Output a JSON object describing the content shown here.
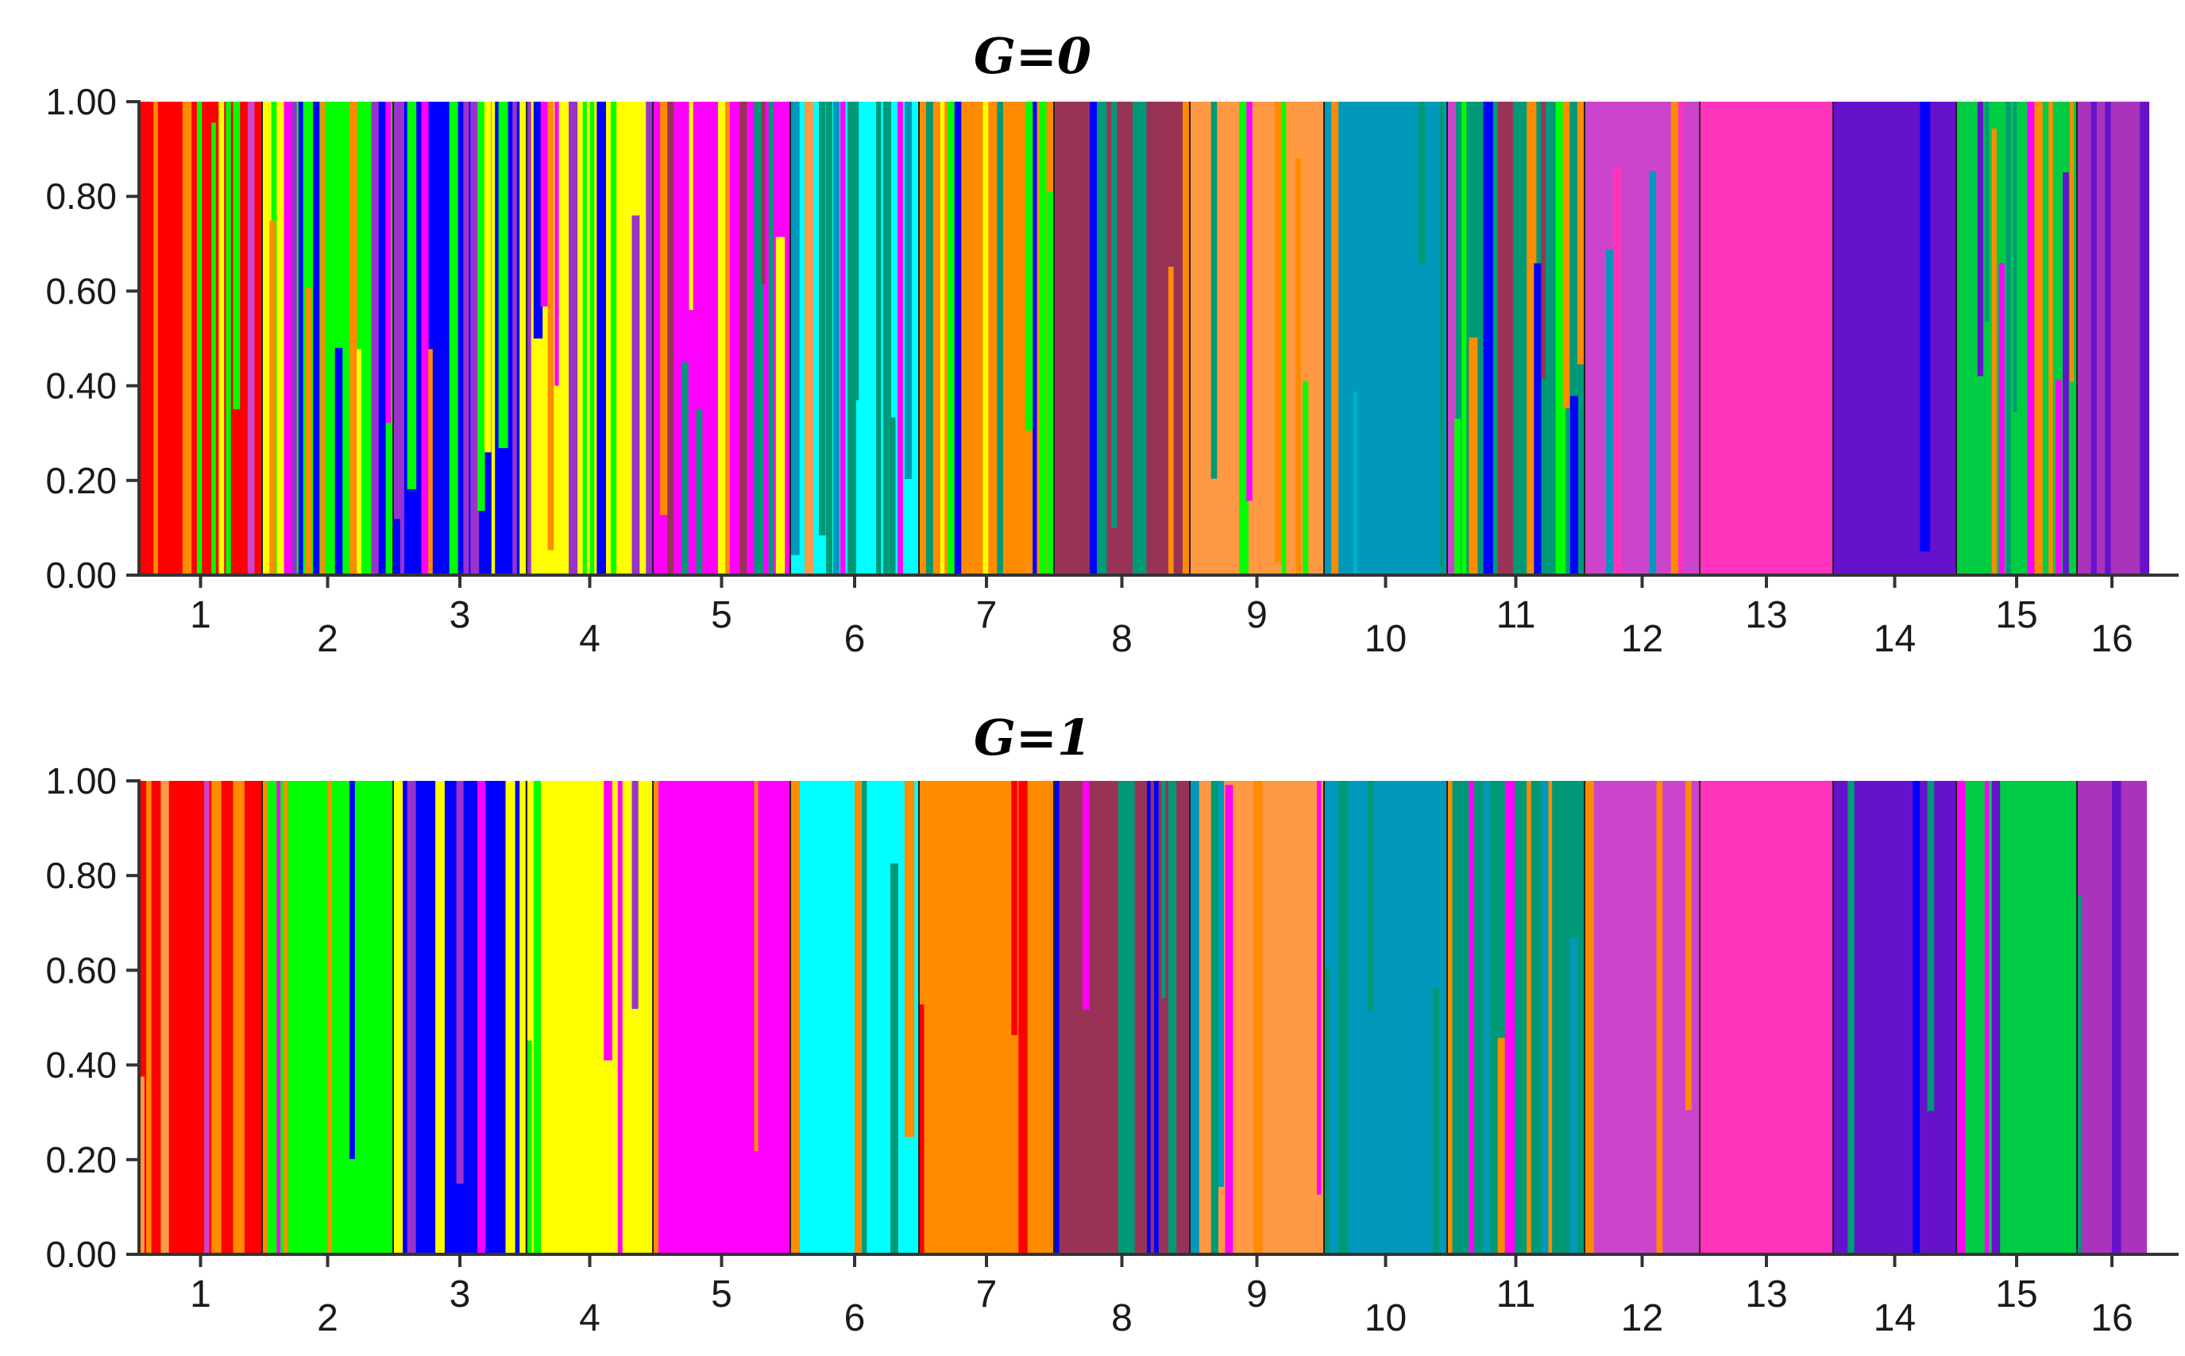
{
  "palette": [
    "#FF8C00",
    "#FF0000",
    "#00FF00",
    "#0000FF",
    "#FFFF00",
    "#FF00FF",
    "#993355",
    "#00FFFF",
    "#FF9944",
    "#0099BB",
    "#009977",
    "#CC44CC",
    "#FF33BB",
    "#6611CC",
    "#00CC44",
    "#AA33BB",
    "#9933CC",
    "#33AA88",
    "#00B0C8"
  ],
  "chart_data": [
    {
      "type": "bar",
      "subtype": "stacked-admixture",
      "title": "G=0",
      "xlabel": "",
      "ylabel": "",
      "ylim": [
        0,
        1
      ],
      "yticks": [
        "0.00",
        "0.20",
        "0.40",
        "0.60",
        "0.80",
        "1.00"
      ],
      "categories": [
        "1",
        "2",
        "3",
        "4",
        "5",
        "6",
        "7",
        "8",
        "9",
        "10",
        "11",
        "12",
        "13",
        "14",
        "15",
        "16"
      ],
      "groups": [
        {
          "label": "1",
          "dominant": "#FF0000",
          "mix": 0.55,
          "intruders": [
            "#FF8C00",
            "#FFFF00",
            "#CC44CC",
            "#00FF00",
            "#009977"
          ]
        },
        {
          "label": "2",
          "dominant": "#00FF00",
          "mix": 0.7,
          "intruders": [
            "#FF8C00",
            "#FF00FF",
            "#FFFF00",
            "#0000FF",
            "#9933CC",
            "#FF8C00"
          ]
        },
        {
          "label": "3",
          "dominant": "#0000FF",
          "mix": 0.8,
          "intruders": [
            "#FFFF00",
            "#FF8C00",
            "#00FF00",
            "#9933CC",
            "#FF00FF"
          ]
        },
        {
          "label": "4",
          "dominant": "#FFFF00",
          "mix": 0.75,
          "intruders": [
            "#9933CC",
            "#FF8C00",
            "#00FF00",
            "#FF00FF",
            "#0000FF"
          ]
        },
        {
          "label": "5",
          "dominant": "#FF00FF",
          "mix": 0.55,
          "intruders": [
            "#993355",
            "#FF8C00",
            "#FFFF00",
            "#009977",
            "#CC44CC"
          ]
        },
        {
          "label": "6",
          "dominant": "#00FFFF",
          "mix": 0.7,
          "intruders": [
            "#009977",
            "#FF8C00",
            "#FF00FF",
            "#0099BB",
            "#FF9944"
          ]
        },
        {
          "label": "7",
          "dominant": "#FF8C00",
          "mix": 0.6,
          "intruders": [
            "#009977",
            "#00FF00",
            "#0000FF",
            "#FFFF00"
          ]
        },
        {
          "label": "8",
          "dominant": "#993355",
          "mix": 0.25,
          "intruders": [
            "#FF8C00",
            "#009977",
            "#0000FF"
          ]
        },
        {
          "label": "9",
          "dominant": "#FF9944",
          "mix": 0.45,
          "intruders": [
            "#FF8C00",
            "#009977",
            "#FF00FF",
            "#00FF00"
          ]
        },
        {
          "label": "10",
          "dominant": "#0099BB",
          "mix": 0.3,
          "intruders": [
            "#FF8C00",
            "#009977",
            "#00B0C8"
          ]
        },
        {
          "label": "11",
          "dominant": "#009977",
          "mix": 0.8,
          "intruders": [
            "#0000FF",
            "#FF8C00",
            "#CC44CC",
            "#00FF00",
            "#993355"
          ]
        },
        {
          "label": "12",
          "dominant": "#CC44CC",
          "mix": 0.35,
          "intruders": [
            "#FF33BB",
            "#0099BB",
            "#FF8C00"
          ]
        },
        {
          "label": "13",
          "dominant": "#FF33BB",
          "mix": 0.0,
          "intruders": []
        },
        {
          "label": "14",
          "dominant": "#6611CC",
          "mix": 0.1,
          "intruders": [
            "#0000FF"
          ]
        },
        {
          "label": "15",
          "dominant": "#00CC44",
          "mix": 0.6,
          "intruders": [
            "#FF00FF",
            "#6611CC",
            "#009977",
            "#FF8C00"
          ]
        },
        {
          "label": "16",
          "dominant": "#AA33BB",
          "mix": 0.3,
          "intruders": [
            "#FF8C00",
            "#6611CC"
          ]
        }
      ]
    },
    {
      "type": "bar",
      "subtype": "stacked-admixture",
      "title": "G=1",
      "xlabel": "",
      "ylabel": "",
      "ylim": [
        0,
        1
      ],
      "yticks": [
        "0.00",
        "0.20",
        "0.40",
        "0.60",
        "0.80",
        "1.00"
      ],
      "categories": [
        "1",
        "2",
        "3",
        "4",
        "5",
        "6",
        "7",
        "8",
        "9",
        "10",
        "11",
        "12",
        "13",
        "14",
        "15",
        "16"
      ],
      "groups": [
        {
          "label": "1",
          "dominant": "#FF0000",
          "mix": 0.25,
          "intruders": [
            "#FF8C00",
            "#CC44CC",
            "#FF9944"
          ]
        },
        {
          "label": "2",
          "dominant": "#00FF00",
          "mix": 0.25,
          "intruders": [
            "#FF8C00",
            "#0000FF",
            "#9933CC",
            "#FF00FF"
          ]
        },
        {
          "label": "3",
          "dominant": "#0000FF",
          "mix": 0.3,
          "intruders": [
            "#FF8C00",
            "#FFFF00",
            "#FF00FF",
            "#00FF00",
            "#9933CC"
          ]
        },
        {
          "label": "4",
          "dominant": "#FFFF00",
          "mix": 0.35,
          "intruders": [
            "#0000FF",
            "#9933CC",
            "#FF8C00",
            "#00FF00",
            "#FF00FF"
          ]
        },
        {
          "label": "5",
          "dominant": "#FF00FF",
          "mix": 0.12,
          "intruders": [
            "#FF8C00",
            "#993355"
          ]
        },
        {
          "label": "6",
          "dominant": "#00FFFF",
          "mix": 0.15,
          "intruders": [
            "#009977",
            "#FF8C00",
            "#FF00FF"
          ]
        },
        {
          "label": "7",
          "dominant": "#FF8C00",
          "mix": 0.25,
          "intruders": [
            "#0000FF",
            "#00FF00",
            "#009977",
            "#FF0000"
          ]
        },
        {
          "label": "8",
          "dominant": "#993355",
          "mix": 0.3,
          "intruders": [
            "#0000FF",
            "#FF8C00",
            "#009977",
            "#FF00FF"
          ]
        },
        {
          "label": "9",
          "dominant": "#FF9944",
          "mix": 0.3,
          "intruders": [
            "#009977",
            "#FF00FF",
            "#0099BB",
            "#FF8C00"
          ]
        },
        {
          "label": "10",
          "dominant": "#0099BB",
          "mix": 0.15,
          "intruders": [
            "#00FFFF",
            "#009977"
          ]
        },
        {
          "label": "11",
          "dominant": "#009977",
          "mix": 0.25,
          "intruders": [
            "#FF8C00",
            "#0099BB",
            "#FF00FF"
          ]
        },
        {
          "label": "12",
          "dominant": "#CC44CC",
          "mix": 0.35,
          "intruders": [
            "#FF33BB",
            "#0000FF",
            "#FF8C00",
            "#0099BB"
          ]
        },
        {
          "label": "13",
          "dominant": "#FF33BB",
          "mix": 0.0,
          "intruders": []
        },
        {
          "label": "14",
          "dominant": "#6611CC",
          "mix": 0.15,
          "intruders": [
            "#0000FF",
            "#009977"
          ]
        },
        {
          "label": "15",
          "dominant": "#00CC44",
          "mix": 0.25,
          "intruders": [
            "#FF8C00",
            "#6611CC",
            "#FF00FF"
          ]
        },
        {
          "label": "16",
          "dominant": "#AA33BB",
          "mix": 0.25,
          "intruders": [
            "#009977",
            "#0099BB",
            "#6611CC"
          ]
        }
      ]
    }
  ]
}
